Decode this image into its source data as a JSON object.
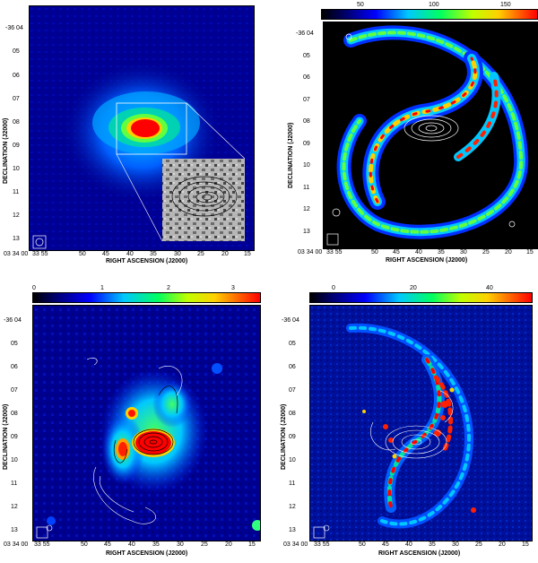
{
  "yticks": [
    "-36 04",
    "05",
    "06",
    "07",
    "08",
    "09",
    "10",
    "11",
    "12",
    "13"
  ],
  "xticks": [
    "03 34 00",
    "33 55",
    "50",
    "45",
    "40",
    "35",
    "30",
    "25",
    "20",
    "15"
  ],
  "xlabel": "RIGHT ASCENSION (J2000)",
  "ylabel": "DECLINATION (J2000)",
  "panels": [
    {
      "id": "tl",
      "colorbar": null
    },
    {
      "id": "tr",
      "colorbar": [
        "50",
        "100",
        "150"
      ]
    },
    {
      "id": "bl",
      "colorbar": [
        "0",
        "1",
        "2",
        "3"
      ]
    },
    {
      "id": "br",
      "colorbar": [
        "0",
        "20",
        "40"
      ]
    }
  ],
  "colors": {
    "background": "#000090",
    "bright": "#ff0000",
    "mid": "#00ff60",
    "cool": "#0050ff"
  }
}
